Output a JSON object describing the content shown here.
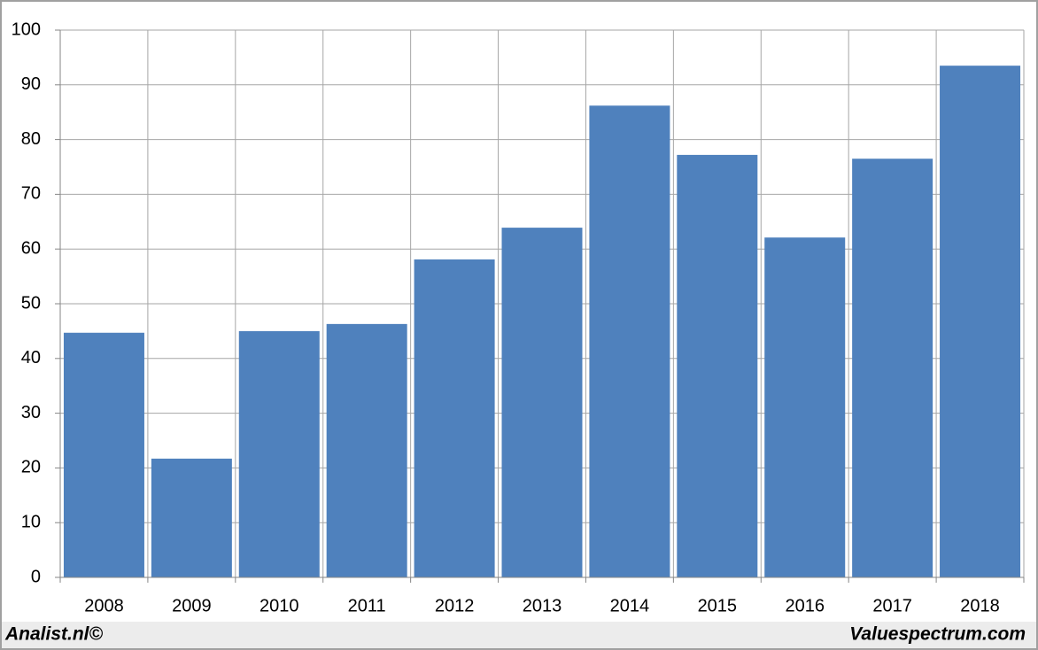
{
  "chart_data": {
    "type": "bar",
    "categories": [
      "2008",
      "2009",
      "2010",
      "2011",
      "2012",
      "2013",
      "2014",
      "2015",
      "2016",
      "2017",
      "2018"
    ],
    "values": [
      44.7,
      21.7,
      45.0,
      46.3,
      58.1,
      63.9,
      86.2,
      77.2,
      62.1,
      76.5,
      93.5
    ],
    "color": "#4f81bd",
    "ylim": [
      0,
      100
    ],
    "yticks": [
      0,
      10,
      20,
      30,
      40,
      50,
      60,
      70,
      80,
      90,
      100
    ],
    "grid": true,
    "footer_left": "Analist.nl©",
    "footer_right": "Valuespectrum.com"
  }
}
